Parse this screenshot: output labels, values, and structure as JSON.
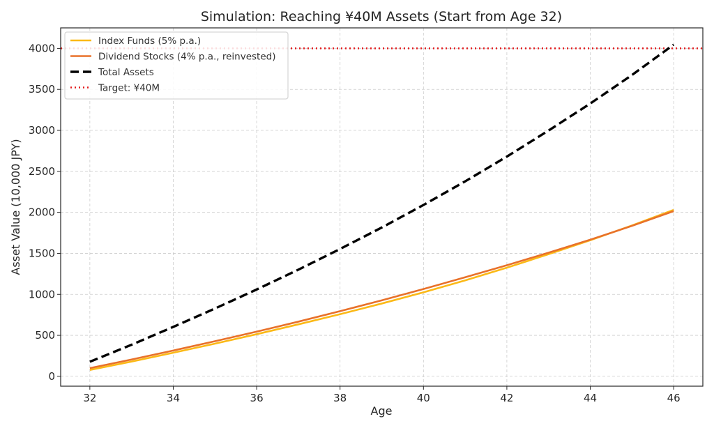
{
  "chart_data": {
    "type": "line",
    "title": "Simulation: Reaching ¥40M Assets (Start from Age 32)",
    "xlabel": "Age",
    "ylabel": "Asset Value (10,000 JPY)",
    "xlim": [
      31.3,
      46.7
    ],
    "ylim": [
      -120,
      4250
    ],
    "xticks": [
      32,
      34,
      36,
      38,
      40,
      42,
      44,
      46
    ],
    "yticks": [
      0,
      500,
      1000,
      1500,
      2000,
      2500,
      3000,
      3500,
      4000
    ],
    "grid": true,
    "legend_position": "top-left",
    "x": [
      32,
      33,
      34,
      35,
      36,
      37,
      38,
      39,
      40,
      41,
      42,
      43,
      44,
      45,
      46
    ],
    "series": [
      {
        "name": "Index Funds (5% p.a.)",
        "color": "#FBB917",
        "style": "solid",
        "values": [
          78,
          180,
          288,
          399,
          514,
          634,
          758,
          888,
          1025,
          1170,
          1325,
          1490,
          1660,
          1840,
          2030
        ]
      },
      {
        "name": "Dividend Stocks (4% p.a., reinvested)",
        "color": "#E8712A",
        "style": "solid",
        "values": [
          100,
          205,
          315,
          428,
          545,
          667,
          795,
          927,
          1065,
          1208,
          1355,
          1508,
          1667,
          1835,
          2015
        ]
      },
      {
        "name": "Total Assets",
        "color": "#000000",
        "style": "dashed",
        "values": [
          178,
          385,
          603,
          827,
          1059,
          1301,
          1553,
          1815,
          2090,
          2378,
          2680,
          2998,
          3327,
          3675,
          4045
        ]
      }
    ],
    "reference_lines": [
      {
        "name": "Target: ¥40M",
        "y": 4000,
        "color": "#E41A1C",
        "style": "dotted"
      }
    ]
  }
}
